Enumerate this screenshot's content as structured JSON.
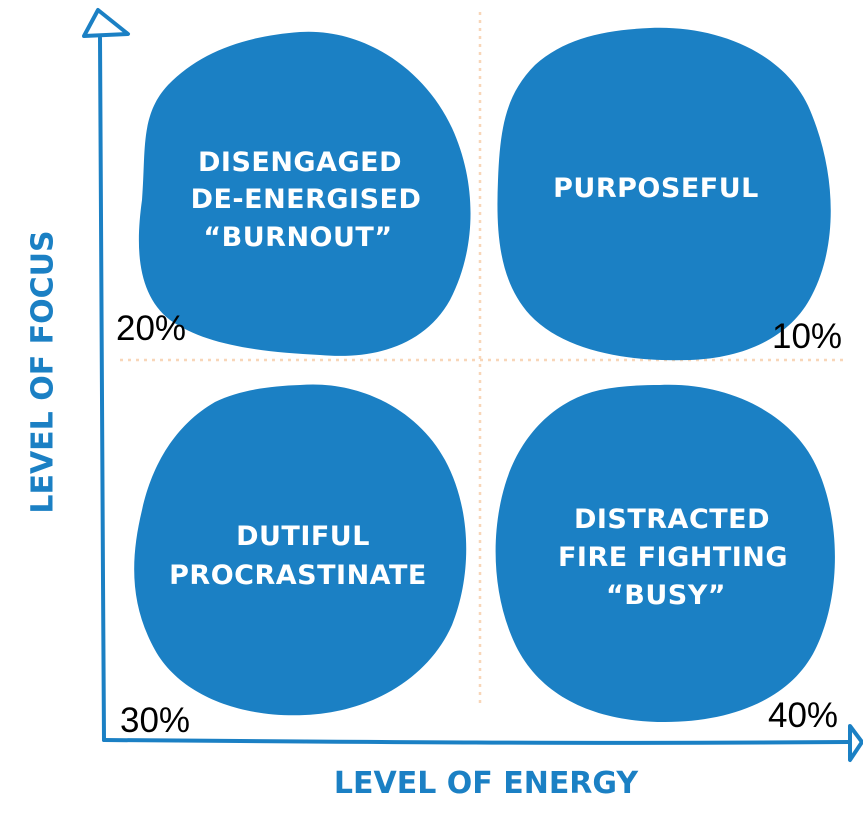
{
  "quadrants": {
    "top_left": {
      "lines": [
        "DISENGAGED",
        "DE-ENERGISED",
        "“BURNOUT”"
      ],
      "percent": "20%"
    },
    "top_right": {
      "lines": [
        "PURPOSEFUL"
      ],
      "percent": "10%"
    },
    "bottom_left": {
      "lines": [
        "DUTIFUL",
        "PROCRASTINATE"
      ],
      "percent": "30%"
    },
    "bottom_right": {
      "lines": [
        "DISTRACTED",
        "FIRE FIGHTING",
        "“BUSY”"
      ],
      "percent": "40%"
    }
  },
  "axes": {
    "y_label": "LEVEL OF FOCUS",
    "x_label": "LEVEL OF ENERGY"
  },
  "colors": {
    "blob": "#1b80c4",
    "axis": "#1b80c4",
    "divider": "#f8d6b8"
  }
}
